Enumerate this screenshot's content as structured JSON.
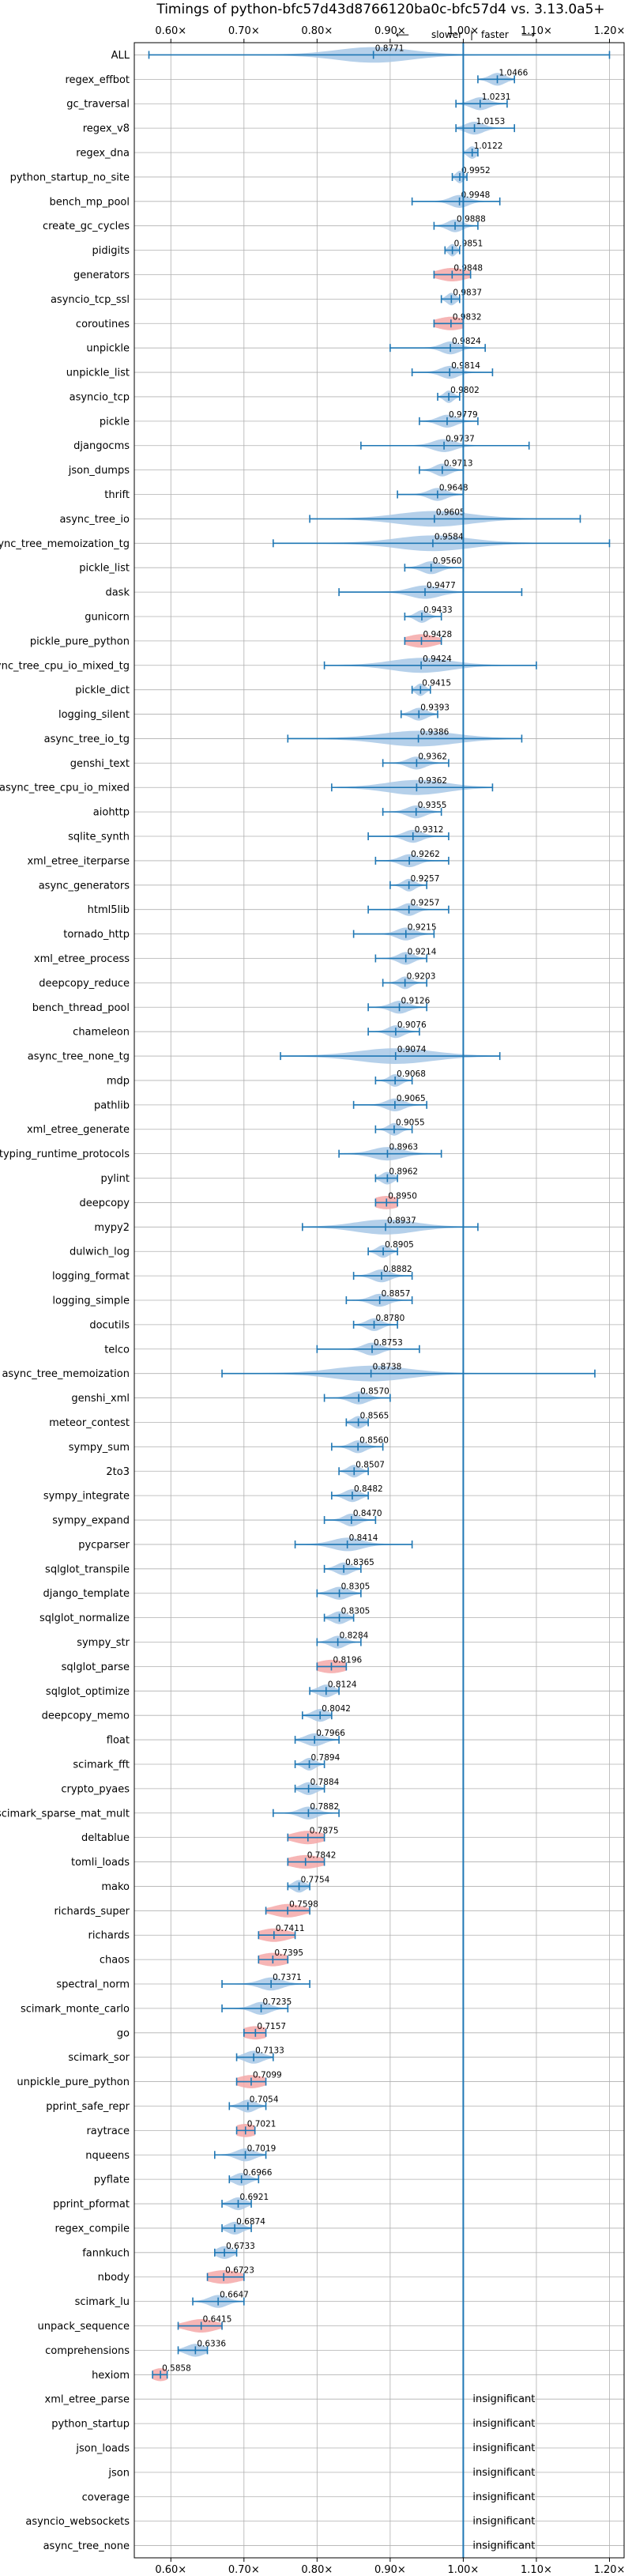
{
  "chart_data": {
    "type": "violin",
    "title": "Timings of python-bfc57d43d8766120ba0c-bfc57d4 vs. 3.13.0a5+",
    "subtitle_left": "slower",
    "subtitle_sep": "|",
    "subtitle_right": "faster",
    "subtitle_arrows": [
      "⟵",
      "⟶"
    ],
    "xlim": [
      0.55,
      1.22
    ],
    "x_ticks": [
      0.6,
      0.7,
      0.8,
      0.9,
      1.0,
      1.1,
      1.2
    ],
    "x_tick_labels": [
      "0.60×",
      "0.70×",
      "0.80×",
      "0.90×",
      "1.00×",
      "1.10×",
      "1.20×"
    ],
    "reference_line": 1.0,
    "grid": true,
    "insignificant_label": "insignificant",
    "colors": {
      "violin": "#a8c8e6",
      "violin_highlight": "#f4a8a8",
      "whisker": "#1f77b4",
      "reference": "#1f77b4",
      "grid": "#b0b0b0"
    },
    "benchmarks": [
      {
        "name": "ALL",
        "value": 0.8771,
        "label": "0.8771",
        "min": 0.57,
        "max": 1.2,
        "w": 0.05,
        "hl": false
      },
      {
        "name": "regex_effbot",
        "value": 1.0466,
        "label": "1.0466",
        "min": 1.02,
        "max": 1.07,
        "w": 0.01,
        "hl": false
      },
      {
        "name": "gc_traversal",
        "value": 1.0231,
        "label": "1.0231",
        "min": 0.99,
        "max": 1.06,
        "w": 0.012,
        "hl": false
      },
      {
        "name": "regex_v8",
        "value": 1.0153,
        "label": "1.0153",
        "min": 0.99,
        "max": 1.07,
        "w": 0.012,
        "hl": false
      },
      {
        "name": "regex_dna",
        "value": 1.0122,
        "label": "1.0122",
        "min": 1.0,
        "max": 1.02,
        "w": 0.006,
        "hl": false
      },
      {
        "name": "python_startup_no_site",
        "value": 0.9952,
        "label": "0.9952",
        "min": 0.985,
        "max": 1.005,
        "w": 0.005,
        "hl": false
      },
      {
        "name": "bench_mp_pool",
        "value": 0.9948,
        "label": "0.9948",
        "min": 0.93,
        "max": 1.05,
        "w": 0.012,
        "hl": false
      },
      {
        "name": "create_gc_cycles",
        "value": 0.9888,
        "label": "0.9888",
        "min": 0.96,
        "max": 1.02,
        "w": 0.01,
        "hl": false
      },
      {
        "name": "pidigits",
        "value": 0.9851,
        "label": "0.9851",
        "min": 0.975,
        "max": 0.995,
        "w": 0.005,
        "hl": false
      },
      {
        "name": "generators",
        "value": 0.9848,
        "label": "0.9848",
        "min": 0.96,
        "max": 1.01,
        "w": 0.02,
        "hl": true
      },
      {
        "name": "asyncio_tcp_ssl",
        "value": 0.9837,
        "label": "0.9837",
        "min": 0.97,
        "max": 0.995,
        "w": 0.006,
        "hl": false
      },
      {
        "name": "coroutines",
        "value": 0.9832,
        "label": "0.9832",
        "min": 0.96,
        "max": 1.0,
        "w": 0.02,
        "hl": true
      },
      {
        "name": "unpickle",
        "value": 0.9824,
        "label": "0.9824",
        "min": 0.9,
        "max": 1.03,
        "w": 0.012,
        "hl": false
      },
      {
        "name": "unpickle_list",
        "value": 0.9814,
        "label": "0.9814",
        "min": 0.93,
        "max": 1.04,
        "w": 0.012,
        "hl": false
      },
      {
        "name": "asyncio_tcp",
        "value": 0.9802,
        "label": "0.9802",
        "min": 0.965,
        "max": 0.995,
        "w": 0.006,
        "hl": false
      },
      {
        "name": "pickle",
        "value": 0.9779,
        "label": "0.9779",
        "min": 0.94,
        "max": 1.02,
        "w": 0.012,
        "hl": false
      },
      {
        "name": "djangocms",
        "value": 0.9737,
        "label": "0.9737",
        "min": 0.86,
        "max": 1.09,
        "w": 0.015,
        "hl": false
      },
      {
        "name": "json_dumps",
        "value": 0.9713,
        "label": "0.9713",
        "min": 0.94,
        "max": 1.0,
        "w": 0.01,
        "hl": false
      },
      {
        "name": "thrift",
        "value": 0.9648,
        "label": "0.9648",
        "min": 0.91,
        "max": 1.0,
        "w": 0.012,
        "hl": false
      },
      {
        "name": "async_tree_io",
        "value": 0.9605,
        "label": "0.9605",
        "min": 0.79,
        "max": 1.16,
        "w": 0.05,
        "hl": false
      },
      {
        "name": "async_tree_memoization_tg",
        "value": 0.9584,
        "label": "0.9584",
        "min": 0.74,
        "max": 1.2,
        "w": 0.05,
        "hl": false
      },
      {
        "name": "pickle_list",
        "value": 0.956,
        "label": "0.9560",
        "min": 0.92,
        "max": 1.0,
        "w": 0.012,
        "hl": false
      },
      {
        "name": "dask",
        "value": 0.9477,
        "label": "0.9477",
        "min": 0.83,
        "max": 1.08,
        "w": 0.02,
        "hl": false
      },
      {
        "name": "gunicorn",
        "value": 0.9433,
        "label": "0.9433",
        "min": 0.92,
        "max": 0.97,
        "w": 0.008,
        "hl": false
      },
      {
        "name": "pickle_pure_python",
        "value": 0.9428,
        "label": "0.9428",
        "min": 0.92,
        "max": 0.97,
        "w": 0.02,
        "hl": true
      },
      {
        "name": "async_tree_cpu_io_mixed_tg",
        "value": 0.9424,
        "label": "0.9424",
        "min": 0.81,
        "max": 1.1,
        "w": 0.04,
        "hl": false
      },
      {
        "name": "pickle_dict",
        "value": 0.9415,
        "label": "0.9415",
        "min": 0.93,
        "max": 0.955,
        "w": 0.006,
        "hl": false
      },
      {
        "name": "logging_silent",
        "value": 0.9393,
        "label": "0.9393",
        "min": 0.915,
        "max": 0.965,
        "w": 0.01,
        "hl": false
      },
      {
        "name": "async_tree_io_tg",
        "value": 0.9386,
        "label": "0.9386",
        "min": 0.76,
        "max": 1.08,
        "w": 0.05,
        "hl": false
      },
      {
        "name": "genshi_text",
        "value": 0.9362,
        "label": "0.9362",
        "min": 0.89,
        "max": 0.98,
        "w": 0.012,
        "hl": false
      },
      {
        "name": "async_tree_cpu_io_mixed",
        "value": 0.9362,
        "label": "0.9362",
        "min": 0.82,
        "max": 1.04,
        "w": 0.04,
        "hl": false
      },
      {
        "name": "aiohttp",
        "value": 0.9355,
        "label": "0.9355",
        "min": 0.89,
        "max": 0.97,
        "w": 0.012,
        "hl": false
      },
      {
        "name": "sqlite_synth",
        "value": 0.9312,
        "label": "0.9312",
        "min": 0.87,
        "max": 0.98,
        "w": 0.012,
        "hl": false
      },
      {
        "name": "xml_etree_iterparse",
        "value": 0.9262,
        "label": "0.9262",
        "min": 0.88,
        "max": 0.98,
        "w": 0.012,
        "hl": false
      },
      {
        "name": "async_generators",
        "value": 0.9257,
        "label": "0.9257",
        "min": 0.9,
        "max": 0.95,
        "w": 0.008,
        "hl": false
      },
      {
        "name": "html5lib",
        "value": 0.9257,
        "label": "0.9257",
        "min": 0.87,
        "max": 0.98,
        "w": 0.01,
        "hl": false
      },
      {
        "name": "tornado_http",
        "value": 0.9215,
        "label": "0.9215",
        "min": 0.85,
        "max": 0.96,
        "w": 0.012,
        "hl": false
      },
      {
        "name": "xml_etree_process",
        "value": 0.9214,
        "label": "0.9214",
        "min": 0.88,
        "max": 0.95,
        "w": 0.01,
        "hl": false
      },
      {
        "name": "deepcopy_reduce",
        "value": 0.9203,
        "label": "0.9203",
        "min": 0.89,
        "max": 0.95,
        "w": 0.008,
        "hl": false
      },
      {
        "name": "bench_thread_pool",
        "value": 0.9126,
        "label": "0.9126",
        "min": 0.87,
        "max": 0.95,
        "w": 0.012,
        "hl": false
      },
      {
        "name": "chameleon",
        "value": 0.9076,
        "label": "0.9076",
        "min": 0.87,
        "max": 0.94,
        "w": 0.01,
        "hl": false
      },
      {
        "name": "async_tree_none_tg",
        "value": 0.9074,
        "label": "0.9074",
        "min": 0.75,
        "max": 1.05,
        "w": 0.05,
        "hl": false
      },
      {
        "name": "mdp",
        "value": 0.9068,
        "label": "0.9068",
        "min": 0.88,
        "max": 0.93,
        "w": 0.008,
        "hl": false
      },
      {
        "name": "pathlib",
        "value": 0.9065,
        "label": "0.9065",
        "min": 0.85,
        "max": 0.95,
        "w": 0.012,
        "hl": false
      },
      {
        "name": "xml_etree_generate",
        "value": 0.9055,
        "label": "0.9055",
        "min": 0.88,
        "max": 0.93,
        "w": 0.008,
        "hl": false
      },
      {
        "name": "typing_runtime_protocols",
        "value": 0.8963,
        "label": "0.8963",
        "min": 0.83,
        "max": 0.97,
        "w": 0.02,
        "hl": false
      },
      {
        "name": "pylint",
        "value": 0.8962,
        "label": "0.8962",
        "min": 0.88,
        "max": 0.91,
        "w": 0.008,
        "hl": false
      },
      {
        "name": "deepcopy",
        "value": 0.895,
        "label": "0.8950",
        "min": 0.88,
        "max": 0.91,
        "w": 0.018,
        "hl": true
      },
      {
        "name": "mypy2",
        "value": 0.8937,
        "label": "0.8937",
        "min": 0.78,
        "max": 1.02,
        "w": 0.04,
        "hl": false
      },
      {
        "name": "dulwich_log",
        "value": 0.8905,
        "label": "0.8905",
        "min": 0.87,
        "max": 0.91,
        "w": 0.008,
        "hl": false
      },
      {
        "name": "logging_format",
        "value": 0.8882,
        "label": "0.8882",
        "min": 0.85,
        "max": 0.93,
        "w": 0.012,
        "hl": false
      },
      {
        "name": "logging_simple",
        "value": 0.8857,
        "label": "0.8857",
        "min": 0.84,
        "max": 0.93,
        "w": 0.012,
        "hl": false
      },
      {
        "name": "docutils",
        "value": 0.878,
        "label": "0.8780",
        "min": 0.85,
        "max": 0.91,
        "w": 0.01,
        "hl": false
      },
      {
        "name": "telco",
        "value": 0.8753,
        "label": "0.8753",
        "min": 0.8,
        "max": 0.94,
        "w": 0.012,
        "hl": false
      },
      {
        "name": "async_tree_memoization",
        "value": 0.8738,
        "label": "0.8738",
        "min": 0.67,
        "max": 1.18,
        "w": 0.05,
        "hl": false
      },
      {
        "name": "genshi_xml",
        "value": 0.857,
        "label": "0.8570",
        "min": 0.81,
        "max": 0.9,
        "w": 0.012,
        "hl": false
      },
      {
        "name": "meteor_contest",
        "value": 0.8565,
        "label": "0.8565",
        "min": 0.84,
        "max": 0.87,
        "w": 0.008,
        "hl": false
      },
      {
        "name": "sympy_sum",
        "value": 0.856,
        "label": "0.8560",
        "min": 0.82,
        "max": 0.89,
        "w": 0.01,
        "hl": false
      },
      {
        "name": "2to3",
        "value": 0.8507,
        "label": "0.8507",
        "min": 0.83,
        "max": 0.87,
        "w": 0.008,
        "hl": false
      },
      {
        "name": "sympy_integrate",
        "value": 0.8482,
        "label": "0.8482",
        "min": 0.82,
        "max": 0.87,
        "w": 0.01,
        "hl": false
      },
      {
        "name": "sympy_expand",
        "value": 0.847,
        "label": "0.8470",
        "min": 0.81,
        "max": 0.88,
        "w": 0.01,
        "hl": false
      },
      {
        "name": "pycparser",
        "value": 0.8414,
        "label": "0.8414",
        "min": 0.77,
        "max": 0.93,
        "w": 0.02,
        "hl": false
      },
      {
        "name": "sqlglot_transpile",
        "value": 0.8365,
        "label": "0.8365",
        "min": 0.81,
        "max": 0.86,
        "w": 0.01,
        "hl": false
      },
      {
        "name": "django_template",
        "value": 0.8305,
        "label": "0.8305",
        "min": 0.8,
        "max": 0.86,
        "w": 0.012,
        "hl": false
      },
      {
        "name": "sqlglot_normalize",
        "value": 0.8305,
        "label": "0.8305",
        "min": 0.81,
        "max": 0.85,
        "w": 0.01,
        "hl": false
      },
      {
        "name": "sympy_str",
        "value": 0.8284,
        "label": "0.8284",
        "min": 0.8,
        "max": 0.86,
        "w": 0.01,
        "hl": false
      },
      {
        "name": "sqlglot_parse",
        "value": 0.8196,
        "label": "0.8196",
        "min": 0.8,
        "max": 0.84,
        "w": 0.02,
        "hl": true
      },
      {
        "name": "sqlglot_optimize",
        "value": 0.8124,
        "label": "0.8124",
        "min": 0.79,
        "max": 0.83,
        "w": 0.01,
        "hl": false
      },
      {
        "name": "deepcopy_memo",
        "value": 0.8042,
        "label": "0.8042",
        "min": 0.78,
        "max": 0.82,
        "w": 0.01,
        "hl": false
      },
      {
        "name": "float",
        "value": 0.7966,
        "label": "0.7966",
        "min": 0.77,
        "max": 0.83,
        "w": 0.012,
        "hl": false
      },
      {
        "name": "scimark_fft",
        "value": 0.7894,
        "label": "0.7894",
        "min": 0.77,
        "max": 0.81,
        "w": 0.008,
        "hl": false
      },
      {
        "name": "crypto_pyaes",
        "value": 0.7884,
        "label": "0.7884",
        "min": 0.77,
        "max": 0.81,
        "w": 0.01,
        "hl": false
      },
      {
        "name": "scimark_sparse_mat_mult",
        "value": 0.7882,
        "label": "0.7882",
        "min": 0.74,
        "max": 0.83,
        "w": 0.012,
        "hl": false
      },
      {
        "name": "deltablue",
        "value": 0.7875,
        "label": "0.7875",
        "min": 0.76,
        "max": 0.81,
        "w": 0.02,
        "hl": true
      },
      {
        "name": "tomli_loads",
        "value": 0.7842,
        "label": "0.7842",
        "min": 0.76,
        "max": 0.81,
        "w": 0.022,
        "hl": true
      },
      {
        "name": "mako",
        "value": 0.7754,
        "label": "0.7754",
        "min": 0.76,
        "max": 0.79,
        "w": 0.008,
        "hl": false
      },
      {
        "name": "richards_super",
        "value": 0.7598,
        "label": "0.7598",
        "min": 0.73,
        "max": 0.79,
        "w": 0.02,
        "hl": true
      },
      {
        "name": "richards",
        "value": 0.7411,
        "label": "0.7411",
        "min": 0.72,
        "max": 0.77,
        "w": 0.02,
        "hl": true
      },
      {
        "name": "chaos",
        "value": 0.7395,
        "label": "0.7395",
        "min": 0.72,
        "max": 0.76,
        "w": 0.02,
        "hl": true
      },
      {
        "name": "spectral_norm",
        "value": 0.7371,
        "label": "0.7371",
        "min": 0.67,
        "max": 0.79,
        "w": 0.015,
        "hl": false
      },
      {
        "name": "scimark_monte_carlo",
        "value": 0.7235,
        "label": "0.7235",
        "min": 0.67,
        "max": 0.76,
        "w": 0.012,
        "hl": false
      },
      {
        "name": "go",
        "value": 0.7157,
        "label": "0.7157",
        "min": 0.7,
        "max": 0.73,
        "w": 0.018,
        "hl": true
      },
      {
        "name": "scimark_sor",
        "value": 0.7133,
        "label": "0.7133",
        "min": 0.69,
        "max": 0.74,
        "w": 0.012,
        "hl": false
      },
      {
        "name": "unpickle_pure_python",
        "value": 0.7099,
        "label": "0.7099",
        "min": 0.69,
        "max": 0.73,
        "w": 0.018,
        "hl": true
      },
      {
        "name": "pprint_safe_repr",
        "value": 0.7054,
        "label": "0.7054",
        "min": 0.68,
        "max": 0.73,
        "w": 0.01,
        "hl": false
      },
      {
        "name": "raytrace",
        "value": 0.7021,
        "label": "0.7021",
        "min": 0.69,
        "max": 0.715,
        "w": 0.016,
        "hl": true
      },
      {
        "name": "nqueens",
        "value": 0.7019,
        "label": "0.7019",
        "min": 0.66,
        "max": 0.73,
        "w": 0.012,
        "hl": false
      },
      {
        "name": "pyflate",
        "value": 0.6966,
        "label": "0.6966",
        "min": 0.68,
        "max": 0.72,
        "w": 0.01,
        "hl": false
      },
      {
        "name": "pprint_pformat",
        "value": 0.6921,
        "label": "0.6921",
        "min": 0.67,
        "max": 0.71,
        "w": 0.01,
        "hl": false
      },
      {
        "name": "regex_compile",
        "value": 0.6874,
        "label": "0.6874",
        "min": 0.67,
        "max": 0.71,
        "w": 0.01,
        "hl": false
      },
      {
        "name": "fannkuch",
        "value": 0.6733,
        "label": "0.6733",
        "min": 0.66,
        "max": 0.69,
        "w": 0.01,
        "hl": false
      },
      {
        "name": "nbody",
        "value": 0.6723,
        "label": "0.6723",
        "min": 0.65,
        "max": 0.7,
        "w": 0.022,
        "hl": true
      },
      {
        "name": "scimark_lu",
        "value": 0.6647,
        "label": "0.6647",
        "min": 0.63,
        "max": 0.7,
        "w": 0.012,
        "hl": false
      },
      {
        "name": "unpack_sequence",
        "value": 0.6415,
        "label": "0.6415",
        "min": 0.61,
        "max": 0.67,
        "w": 0.02,
        "hl": true
      },
      {
        "name": "comprehensions",
        "value": 0.6336,
        "label": "0.6336",
        "min": 0.61,
        "max": 0.65,
        "w": 0.012,
        "hl": false
      },
      {
        "name": "hexiom",
        "value": 0.5858,
        "label": "0.5858",
        "min": 0.575,
        "max": 0.595,
        "w": 0.012,
        "hl": true
      },
      {
        "name": "xml_etree_parse",
        "insignificant": true
      },
      {
        "name": "python_startup",
        "insignificant": true
      },
      {
        "name": "json_loads",
        "insignificant": true
      },
      {
        "name": "json",
        "insignificant": true
      },
      {
        "name": "coverage",
        "insignificant": true
      },
      {
        "name": "asyncio_websockets",
        "insignificant": true
      },
      {
        "name": "async_tree_none",
        "insignificant": true
      }
    ]
  }
}
